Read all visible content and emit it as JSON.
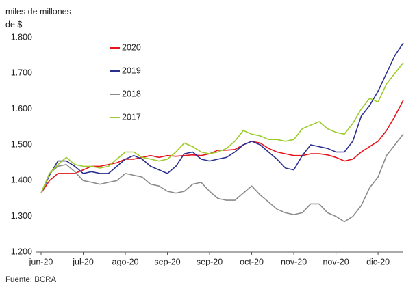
{
  "chart_data": {
    "type": "line",
    "ylabel": "miles de millones de $",
    "source": "Fuente: BCRA",
    "x": [
      0,
      0.2,
      0.4,
      0.6,
      0.8,
      1.0,
      1.2,
      1.4,
      1.6,
      1.8,
      2.0,
      2.2,
      2.4,
      2.6,
      2.8,
      3.0,
      3.2,
      3.4,
      3.6,
      3.8,
      4.0,
      4.2,
      4.4,
      4.6,
      4.8,
      5.0,
      5.2,
      5.4,
      5.6,
      5.8,
      6.0,
      6.2,
      6.4,
      6.6,
      6.8,
      7.0,
      7.2,
      7.4,
      7.6,
      7.8,
      8.0,
      8.2,
      8.4,
      8.6
    ],
    "xlim": [
      0,
      8.6
    ],
    "xticks": [
      {
        "value": 0,
        "label": "jun-20"
      },
      {
        "value": 1,
        "label": "jul-20"
      },
      {
        "value": 2,
        "label": "ago-20"
      },
      {
        "value": 3,
        "label": "sep-20"
      },
      {
        "value": 4,
        "label": "sep-20"
      },
      {
        "value": 5,
        "label": "oct-20"
      },
      {
        "value": 6,
        "label": "nov-20"
      },
      {
        "value": 7,
        "label": "nov-20"
      },
      {
        "value": 8,
        "label": "dic-20"
      }
    ],
    "ylim": [
      1200,
      1800
    ],
    "yticks": [
      {
        "value": 1200,
        "label": "1.200"
      },
      {
        "value": 1300,
        "label": "1.300"
      },
      {
        "value": 1400,
        "label": "1.400"
      },
      {
        "value": 1500,
        "label": "1.500"
      },
      {
        "value": 1600,
        "label": "1.600"
      },
      {
        "value": 1700,
        "label": "1.700"
      },
      {
        "value": 1800,
        "label": "1.800"
      }
    ],
    "grid": false,
    "series": [
      {
        "name": "2020",
        "color": "#e8141c",
        "values": [
          1365,
          1400,
          1420,
          1420,
          1420,
          1430,
          1440,
          1440,
          1445,
          1450,
          1460,
          1460,
          1465,
          1470,
          1465,
          1470,
          1468,
          1470,
          1472,
          1470,
          1475,
          1485,
          1485,
          1487,
          1500,
          1510,
          1505,
          1490,
          1480,
          1475,
          1470,
          1470,
          1475,
          1475,
          1472,
          1465,
          1455,
          1460,
          1480,
          1495,
          1510,
          1540,
          1580,
          1625
        ]
      },
      {
        "name": "2019",
        "color": "#2b2f8f",
        "values": [
          1365,
          1415,
          1455,
          1455,
          1440,
          1420,
          1425,
          1420,
          1420,
          1440,
          1460,
          1470,
          1460,
          1440,
          1430,
          1420,
          1440,
          1475,
          1480,
          1460,
          1455,
          1460,
          1465,
          1480,
          1500,
          1510,
          1500,
          1480,
          1460,
          1435,
          1430,
          1470,
          1500,
          1495,
          1490,
          1480,
          1480,
          1510,
          1580,
          1610,
          1650,
          1700,
          1750,
          1785
        ]
      },
      {
        "name": "2018",
        "color": "#8a8a8a",
        "values": [
          1365,
          1420,
          1440,
          1445,
          1425,
          1400,
          1395,
          1390,
          1395,
          1400,
          1420,
          1415,
          1410,
          1390,
          1385,
          1370,
          1365,
          1370,
          1390,
          1395,
          1370,
          1350,
          1345,
          1345,
          1365,
          1385,
          1360,
          1340,
          1320,
          1310,
          1305,
          1310,
          1335,
          1335,
          1310,
          1300,
          1285,
          1300,
          1330,
          1380,
          1410,
          1470,
          1500,
          1530
        ]
      },
      {
        "name": "2017",
        "color": "#9ccc2c",
        "values": [
          1365,
          1420,
          1445,
          1465,
          1445,
          1440,
          1440,
          1435,
          1440,
          1460,
          1480,
          1480,
          1465,
          1460,
          1455,
          1460,
          1480,
          1505,
          1495,
          1480,
          1475,
          1480,
          1490,
          1510,
          1540,
          1530,
          1525,
          1515,
          1515,
          1510,
          1515,
          1545,
          1555,
          1565,
          1545,
          1535,
          1530,
          1560,
          1600,
          1630,
          1620,
          1670,
          1700,
          1730
        ]
      }
    ]
  }
}
